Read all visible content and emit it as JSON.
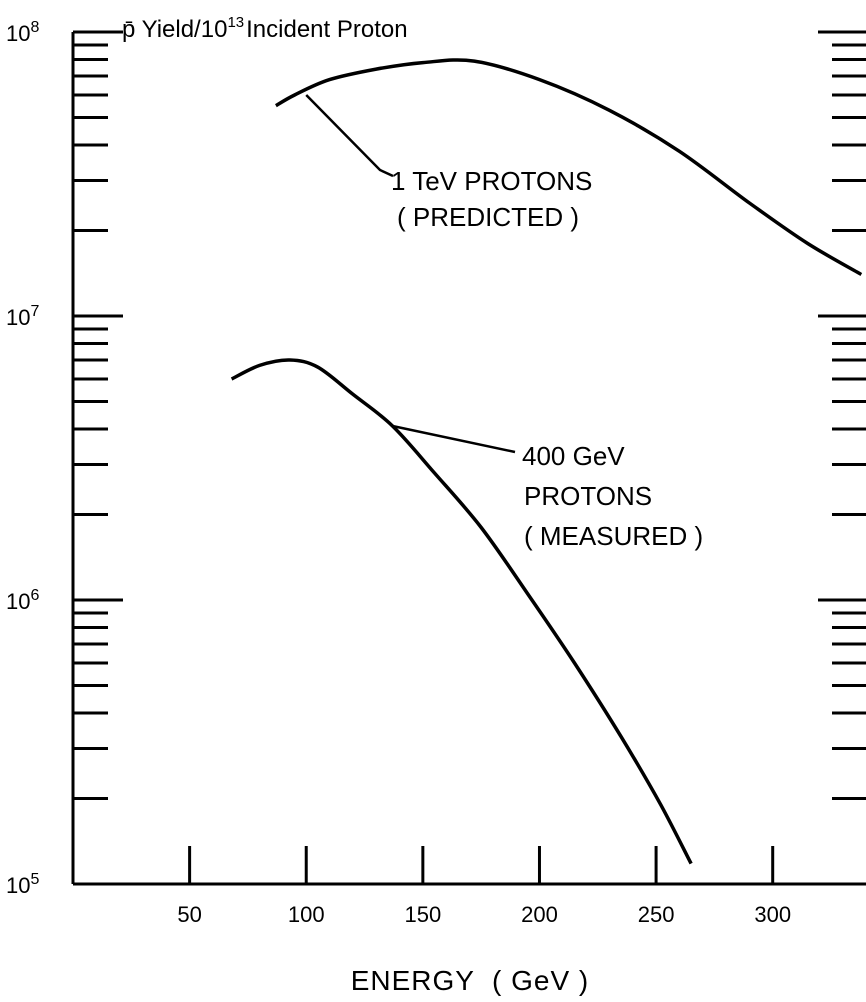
{
  "chart_data": {
    "type": "line",
    "title": "Incident Proton",
    "title_prefix": "p̄ Yield/",
    "title_base": "10",
    "title_exp": "13",
    "xlabel": "ENERGY  ( GeV )",
    "ylabel": "",
    "y_scale": "log",
    "xlim": [
      0,
      340
    ],
    "ylim": [
      100000,
      100000000
    ],
    "grid": false,
    "legend": "none",
    "x_ticks": [
      50,
      100,
      150,
      200,
      250,
      300
    ],
    "x_tick_labels": [
      "50",
      "100",
      "150",
      "200",
      "250",
      "300"
    ],
    "y_decades": [
      {
        "value": 100000,
        "base": "10",
        "exp": "5"
      },
      {
        "value": 1000000,
        "base": "10",
        "exp": "6"
      },
      {
        "value": 10000000,
        "base": "10",
        "exp": "7"
      },
      {
        "value": 100000000,
        "base": "10",
        "exp": "8"
      }
    ],
    "series": [
      {
        "points": [
          [
            87,
            55000000
          ],
          [
            95,
            60000000
          ],
          [
            110,
            68000000
          ],
          [
            130,
            74000000
          ],
          [
            150,
            78000000
          ],
          [
            172,
            79000000
          ],
          [
            200,
            68000000
          ],
          [
            230,
            53000000
          ],
          [
            260,
            38000000
          ],
          [
            290,
            25000000
          ],
          [
            315,
            18000000
          ],
          [
            338,
            14000000
          ]
        ],
        "annotation": [
          "1 TeV  PROTONS",
          "( PREDICTED )"
        ],
        "annotation_at": [
          100,
          60000000
        ]
      },
      {
        "points": [
          [
            68,
            6000000
          ],
          [
            80,
            6700000
          ],
          [
            93,
            7000000
          ],
          [
            105,
            6600000
          ],
          [
            120,
            5300000
          ],
          [
            137,
            4100000
          ],
          [
            155,
            2800000
          ],
          [
            175,
            1800000
          ],
          [
            195,
            1050000
          ],
          [
            215,
            600000
          ],
          [
            235,
            330000
          ],
          [
            252,
            190000
          ],
          [
            265,
            118000
          ]
        ],
        "annotation": [
          "400  GeV",
          "PROTONS",
          "( MEASURED )"
        ],
        "annotation_at": [
          137,
          4100000
        ]
      }
    ]
  }
}
